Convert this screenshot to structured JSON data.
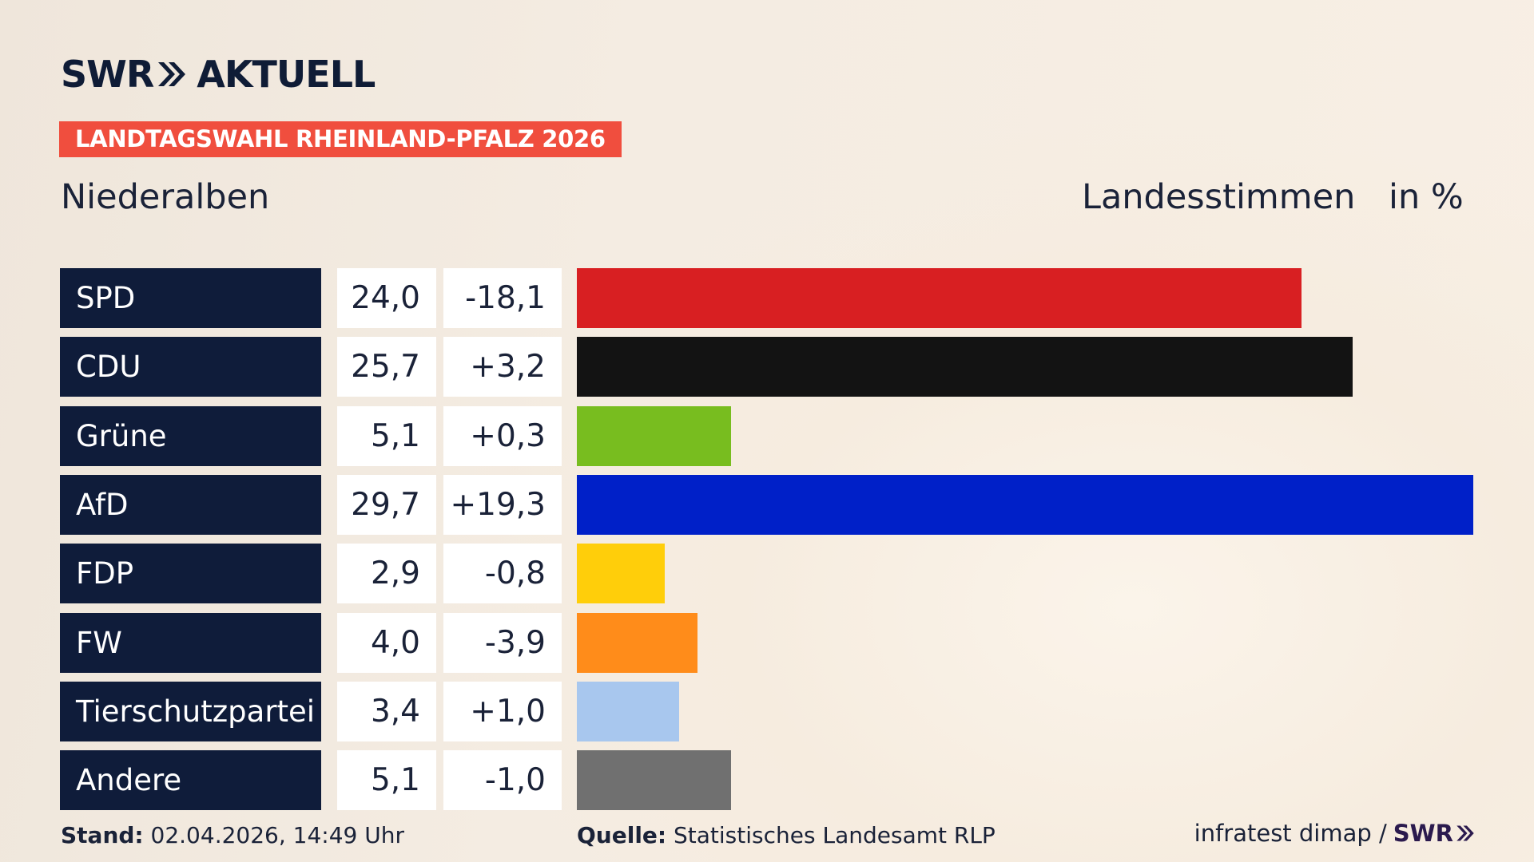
{
  "brand": {
    "logo_left": "SWR",
    "logo_right": "AKTUELL"
  },
  "badge": "LANDTAGSWAHL RHEINLAND-PFALZ 2026",
  "place": "Niederalben",
  "measure": "Landesstimmen",
  "unit": "in %",
  "chart_data": {
    "type": "bar",
    "orientation": "horizontal",
    "categories": [
      "SPD",
      "CDU",
      "Grüne",
      "AfD",
      "FDP",
      "FW",
      "Tierschutzpartei",
      "Andere"
    ],
    "values": [
      24.0,
      25.7,
      5.1,
      29.7,
      2.9,
      4.0,
      3.4,
      5.1
    ],
    "value_labels": [
      "24,0",
      "25,7",
      "5,1",
      "29,7",
      "2,9",
      "4,0",
      "3,4",
      "5,1"
    ],
    "change_labels": [
      "-18,1",
      "+3,2",
      "+0,3",
      "+19,3",
      "-0,8",
      "-3,9",
      "+1,0",
      "-1,0"
    ],
    "colors": [
      "#d81f22",
      "#131313",
      "#78bd1f",
      "#0020c8",
      "#ffce0a",
      "#ff8c1a",
      "#a8c7ee",
      "#707070"
    ],
    "xlim": [
      0,
      29.7
    ]
  },
  "footer": {
    "stand_label": "Stand:",
    "stand_value": "02.04.2026, 14:49 Uhr",
    "source_label": "Quelle:",
    "source_value": "Statistisches Landesamt RLP",
    "credit": "infratest dimap /",
    "credit_brand": "SWR"
  }
}
